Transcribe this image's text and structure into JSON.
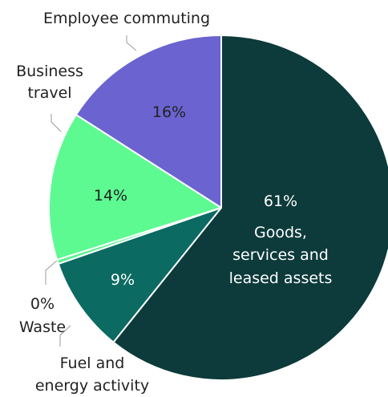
{
  "chart_data": {
    "type": "pie",
    "title": "",
    "slices": [
      {
        "label": "Goods, services and leased assets",
        "label_lines": [
          "Goods,",
          "services and",
          "leased assets"
        ],
        "value_label": "61%",
        "value": 61,
        "color": "#0d3a3a",
        "text_color": "#ffffff"
      },
      {
        "label": "Fuel and energy activity",
        "label_lines": [
          "Fuel and",
          "energy activity"
        ],
        "value_label": "9%",
        "value": 9,
        "color": "#0b6a62",
        "text_color": "#ffffff"
      },
      {
        "label": "Waste",
        "label_lines": [
          "Waste"
        ],
        "value_label": "0%",
        "value": 0.4,
        "color": "#5cf293",
        "text_color": "#222222"
      },
      {
        "label": "Business travel",
        "label_lines": [
          "Business",
          "travel"
        ],
        "value_label": "14%",
        "value": 14,
        "color": "#5dfa92",
        "text_color": "#222222"
      },
      {
        "label": "Employee commuting",
        "label_lines": [
          "Employee commuting"
        ],
        "value_label": "16%",
        "value": 16,
        "color": "#6a63d0",
        "text_color": "#222222"
      }
    ]
  }
}
